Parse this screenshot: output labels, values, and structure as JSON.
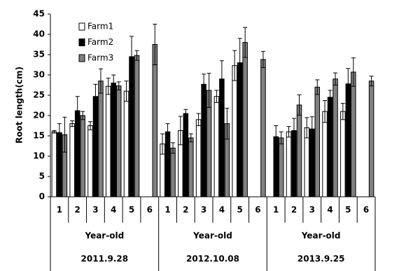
{
  "chart_data": {
    "type": "bar",
    "y_label": "Root length(cm)",
    "categories": [
      "1",
      "2",
      "3",
      "4",
      "5",
      "6",
      "1",
      "2",
      "3",
      "4",
      "5",
      "6",
      "1",
      "2",
      "3",
      "4",
      "5",
      "6"
    ],
    "groups": [
      {
        "name": "2011.9.28",
        "label": "Year-old"
      },
      {
        "name": "2012.10.08",
        "label": "Year-old"
      },
      {
        "name": "2013.9.25",
        "label": "Year-old"
      }
    ],
    "series": [
      {
        "name": "Farm1",
        "color": "#ffffff",
        "values": [
          16,
          18,
          17.5,
          27.2,
          26,
          null,
          13,
          16.3,
          19,
          24.7,
          32.3,
          null,
          null,
          16,
          17,
          21,
          21,
          null
        ],
        "errors": [
          0.3,
          0.7,
          1,
          2,
          2.5,
          null,
          2.5,
          3.5,
          1.5,
          1.5,
          3.7,
          null,
          null,
          1.3,
          2.5,
          2.7,
          2,
          null
        ]
      },
      {
        "name": "Farm2",
        "color": "#000000",
        "values": [
          15.8,
          21.2,
          24.7,
          28,
          34.5,
          null,
          16,
          20.5,
          27.7,
          29,
          33,
          null,
          14.8,
          16.3,
          16.7,
          24.5,
          27.8,
          null
        ],
        "errors": [
          2.2,
          3.5,
          3,
          2,
          5,
          null,
          2,
          1,
          2.5,
          4.5,
          6,
          null,
          2.7,
          3,
          3,
          1.7,
          3.8,
          null
        ]
      },
      {
        "name": "Farm3",
        "color": "#808080",
        "values": [
          15.3,
          20,
          28.5,
          27.3,
          34.8,
          37.5,
          12,
          14.5,
          26.2,
          18,
          38,
          33.8,
          14.5,
          22.6,
          27,
          29,
          30.7,
          28.5
        ],
        "errors": [
          4.3,
          1,
          3,
          1,
          1.2,
          5,
          1.3,
          1,
          4.2,
          3.8,
          3.7,
          2,
          1.5,
          2.5,
          1.8,
          1.5,
          3.5,
          1.2
        ]
      }
    ],
    "ylim": [
      0,
      45
    ],
    "yticks": [
      0,
      5,
      10,
      15,
      20,
      25,
      30,
      35,
      40,
      45
    ]
  }
}
